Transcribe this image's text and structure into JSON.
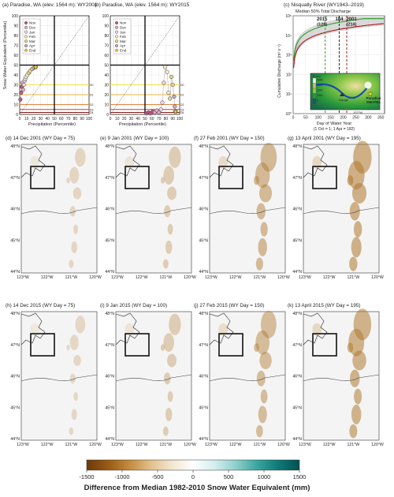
{
  "chart_data": {
    "top_row": [
      {
        "type": "scatter",
        "title": "(a) Paradise, WA (elev. 1564 m): WY2001",
        "xlabel": "Precipitation (Percentile)",
        "ylabel": "Snow Water Equivalent (Percentile)",
        "xlim": [
          0,
          100
        ],
        "ylim": [
          0,
          100
        ],
        "xticks": [
          "0",
          "10",
          "20",
          "30",
          "40",
          "50",
          "60",
          "70",
          "80",
          "90",
          "100"
        ],
        "yticks": [
          "0",
          "10",
          "20",
          "30",
          "40",
          "50",
          "60",
          "70",
          "80",
          "90",
          "100"
        ],
        "legend": [
          "Nov",
          "Dec",
          "Jan",
          "Feb",
          "Mar",
          "Apr",
          "End"
        ],
        "legend_colors": [
          "#c05a8a",
          "#e8a8c8",
          "#f0d8e8",
          "#f5f0d0",
          "#e8d890",
          "#c8a8c8",
          "#f0d020"
        ],
        "drought_lines": [
          {
            "y": 30,
            "label": "D0",
            "color": "#f5e04a"
          },
          {
            "y": 20,
            "label": "D1",
            "color": "#f0b63c"
          },
          {
            "y": 10,
            "label": "D2",
            "color": "#e8843c"
          },
          {
            "y": 5,
            "label": "D3",
            "color": "#c83c3c"
          },
          {
            "y": 2,
            "label": "D4",
            "color": "#801818"
          }
        ],
        "points": [
          {
            "x": 1,
            "y": 15
          },
          {
            "x": 2,
            "y": 22
          },
          {
            "x": 3,
            "y": 28
          },
          {
            "x": 4,
            "y": 32
          },
          {
            "x": 5,
            "y": 25
          },
          {
            "x": 6,
            "y": 30
          },
          {
            "x": 7,
            "y": 34
          },
          {
            "x": 8,
            "y": 36
          },
          {
            "x": 9,
            "y": 38
          },
          {
            "x": 11,
            "y": 40
          },
          {
            "x": 13,
            "y": 42
          },
          {
            "x": 15,
            "y": 44
          },
          {
            "x": 18,
            "y": 46
          },
          {
            "x": 20,
            "y": 47
          },
          {
            "x": 23,
            "y": 48
          }
        ]
      },
      {
        "type": "scatter",
        "title": "(b) Paradise, WA (elev. 1564 m): WY2015",
        "xlabel": "Precipitation (Percentile)",
        "ylabel": "",
        "xlim": [
          0,
          100
        ],
        "ylim": [
          0,
          100
        ],
        "xticks": [
          "0",
          "10",
          "20",
          "30",
          "40",
          "50",
          "60",
          "70",
          "80",
          "90",
          "100"
        ],
        "yticks": [
          "0",
          "10",
          "20",
          "30",
          "40",
          "50",
          "60",
          "70",
          "80",
          "90",
          "100"
        ],
        "legend": [
          "Nov",
          "Dec",
          "Jan",
          "Feb",
          "Mar",
          "Apr",
          "End"
        ],
        "points": [
          {
            "x": 52,
            "y": 1
          },
          {
            "x": 55,
            "y": 2
          },
          {
            "x": 58,
            "y": 1
          },
          {
            "x": 61,
            "y": 3
          },
          {
            "x": 64,
            "y": 2
          },
          {
            "x": 67,
            "y": 4
          },
          {
            "x": 70,
            "y": 2
          },
          {
            "x": 73,
            "y": 5
          },
          {
            "x": 75,
            "y": 12
          },
          {
            "x": 77,
            "y": 32
          },
          {
            "x": 79,
            "y": 48
          },
          {
            "x": 82,
            "y": 43
          },
          {
            "x": 84,
            "y": 22
          },
          {
            "x": 86,
            "y": 16
          },
          {
            "x": 88,
            "y": 38
          },
          {
            "x": 90,
            "y": 30
          },
          {
            "x": 92,
            "y": 18
          },
          {
            "x": 93,
            "y": 8
          },
          {
            "x": 94,
            "y": 3
          }
        ]
      },
      {
        "type": "line",
        "title": "(c) Nisqually River (WY1943–2019)",
        "subtitle": "Median 50% Total Discharge",
        "xlabel": "Day of Water Year",
        "xlabel2": "(1 Oct = 1; 1 Apr = 182)",
        "ylabel": "Cumulative Discharge (m³ s⁻¹)",
        "xlim": [
          0,
          365
        ],
        "ylog": true,
        "xticks": [
          "0",
          "50",
          "100",
          "150",
          "200",
          "250",
          "300",
          "350"
        ],
        "yticks": [
          "10°",
          "10¹",
          "10²",
          "10³",
          "10⁴",
          "10⁵"
        ],
        "markers": [
          {
            "x": 128,
            "label": "2015",
            "sublabel": "(128)",
            "color": "#2aa02a"
          },
          {
            "x": 184,
            "label": "184",
            "sublabel": "",
            "color": "#222222"
          },
          {
            "x": 214,
            "label": "2001",
            "sublabel": "(214)",
            "color": "#b01818"
          }
        ],
        "series": [
          {
            "name": "2015",
            "color": "#2aa02a"
          },
          {
            "name": "2001",
            "color": "#b01818"
          }
        ],
        "inset_labels": [
          "Paradise SNOTEL",
          "Gauge",
          "122°W"
        ],
        "elevation_legend": [
          "4000",
          "3000",
          "2000",
          "1000",
          "0"
        ],
        "elevation_unit": "El.(m)"
      }
    ],
    "maps": [
      {
        "title": "(d) 14 Dec 2001 (WY Day = 75)",
        "intensity": 0.15
      },
      {
        "title": "(e) 9 Jan 2001 (WY Day = 100)",
        "intensity": 0.25
      },
      {
        "title": "(f) 27 Feb 2001 (WY Day = 150)",
        "intensity": 0.55
      },
      {
        "title": "(g) 13 April 2001 (WY Day = 195)",
        "intensity": 0.7
      },
      {
        "title": "(h) 14 Dec 2015 (WY Day = 75)",
        "intensity": 0.1
      },
      {
        "title": "(i) 9 Jan 2015 (WY Day = 100)",
        "intensity": 0.25
      },
      {
        "title": "(j) 27 Feb 2015 (WY Day = 150)",
        "intensity": 0.5
      },
      {
        "title": "(k) 13 April 2015 (WY Day = 195)",
        "intensity": 0.65
      }
    ],
    "map_axes": {
      "lat_labels": [
        "48°N",
        "47°N",
        "46°N",
        "45°N",
        "44°N"
      ],
      "lon_labels": [
        "123°W",
        "122°W",
        "121°W",
        "120°W"
      ]
    },
    "colorbar": {
      "label": "Difference from Median 1982-2010 Snow Water Equivalent (mm)",
      "ticks": [
        "-1500",
        "-1000",
        "-500",
        "0",
        "500",
        "1000",
        "1500"
      ],
      "range": [
        -1500,
        1500
      ],
      "colors": [
        "#6b3a0a",
        "#9a5a14",
        "#c48a3c",
        "#e2c08a",
        "#f3e6cf",
        "#ffffff",
        "#d4eeee",
        "#8fd0cc",
        "#3aa6a0",
        "#0e7a78",
        "#045050"
      ]
    }
  }
}
